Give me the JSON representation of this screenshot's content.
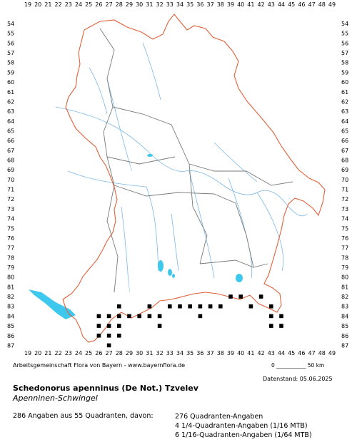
{
  "map": {
    "x_labels": [
      "19",
      "20",
      "21",
      "22",
      "23",
      "24",
      "25",
      "26",
      "27",
      "28",
      "29",
      "30",
      "31",
      "32",
      "33",
      "34",
      "35",
      "36",
      "37",
      "38",
      "39",
      "40",
      "41",
      "42",
      "43",
      "44",
      "45",
      "46",
      "47",
      "48",
      "49"
    ],
    "y_labels": [
      "54",
      "55",
      "56",
      "57",
      "58",
      "59",
      "60",
      "61",
      "62",
      "63",
      "64",
      "65",
      "66",
      "67",
      "68",
      "69",
      "70",
      "71",
      "72",
      "73",
      "74",
      "75",
      "76",
      "77",
      "78",
      "79",
      "80",
      "81",
      "82",
      "83",
      "84",
      "85",
      "86",
      "87"
    ],
    "colors": {
      "border": "#e0603a",
      "admin": "#7a7a7a",
      "rivers": "#7ab8e8",
      "lakes": "#3ec8ee",
      "records": "#000000"
    },
    "records": [
      {
        "col": "26",
        "row": "84"
      },
      {
        "col": "27",
        "row": "84"
      },
      {
        "col": "26",
        "row": "85"
      },
      {
        "col": "27",
        "row": "85"
      },
      {
        "col": "26",
        "row": "86"
      },
      {
        "col": "27",
        "row": "86"
      },
      {
        "col": "27",
        "row": "87"
      },
      {
        "col": "28",
        "row": "83"
      },
      {
        "col": "28",
        "row": "84"
      },
      {
        "col": "29",
        "row": "84"
      },
      {
        "col": "28",
        "row": "85"
      },
      {
        "col": "28",
        "row": "86"
      },
      {
        "col": "30",
        "row": "84"
      },
      {
        "col": "31",
        "row": "83"
      },
      {
        "col": "31",
        "row": "84"
      },
      {
        "col": "32",
        "row": "84"
      },
      {
        "col": "32",
        "row": "85"
      },
      {
        "col": "33",
        "row": "83"
      },
      {
        "col": "34",
        "row": "83"
      },
      {
        "col": "35",
        "row": "83"
      },
      {
        "col": "36",
        "row": "83"
      },
      {
        "col": "36",
        "row": "84"
      },
      {
        "col": "37",
        "row": "83"
      },
      {
        "col": "38",
        "row": "83"
      },
      {
        "col": "39",
        "row": "82"
      },
      {
        "col": "40",
        "row": "82"
      },
      {
        "col": "41",
        "row": "83"
      },
      {
        "col": "42",
        "row": "82"
      },
      {
        "col": "43",
        "row": "83"
      },
      {
        "col": "43",
        "row": "84"
      },
      {
        "col": "44",
        "row": "84"
      },
      {
        "col": "43",
        "row": "85"
      },
      {
        "col": "44",
        "row": "85"
      }
    ],
    "scale": "0 ___________ 50 km"
  },
  "footer": {
    "credit": "Arbeitsgemeinschaft Flora von Bayern - www.bayernflora.de",
    "datenstand": "Datenstand: 05.06.2025",
    "scientific_name": "Schedonorus apenninus (De Not.) Tzvelev",
    "common_name": "Apenninen-Schwingel",
    "summary": "286 Angaben aus 55 Quadranten, davon:",
    "breakdown": [
      "276 Quadranten-Angaben",
      "4 1/4-Quadranten-Angaben (1/16 MTB)",
      "6 1/16-Quadranten-Angaben (1/64 MTB)"
    ]
  }
}
